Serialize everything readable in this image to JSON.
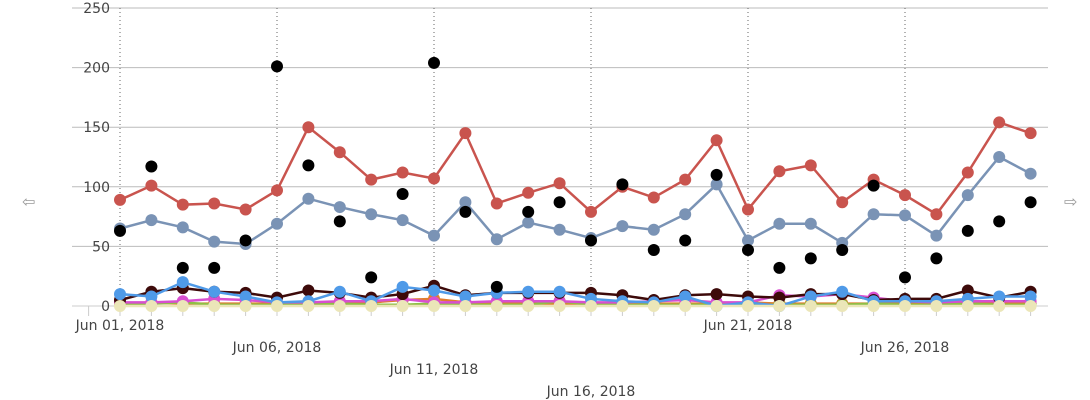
{
  "chart_data": {
    "type": "line",
    "title": "",
    "xlabel": "",
    "ylabel": "",
    "ylim": [
      0,
      250
    ],
    "yticks": [
      "0",
      "50",
      "100",
      "150",
      "200",
      "250"
    ],
    "x": [
      "2018-06-01",
      "2018-06-02",
      "2018-06-03",
      "2018-06-04",
      "2018-06-05",
      "2018-06-06",
      "2018-06-07",
      "2018-06-08",
      "2018-06-09",
      "2018-06-10",
      "2018-06-11",
      "2018-06-12",
      "2018-06-13",
      "2018-06-14",
      "2018-06-15",
      "2018-06-16",
      "2018-06-17",
      "2018-06-18",
      "2018-06-19",
      "2018-06-20",
      "2018-06-21",
      "2018-06-22",
      "2018-06-23",
      "2018-06-24",
      "2018-06-25",
      "2018-06-26",
      "2018-06-27",
      "2018-06-28",
      "2018-06-29",
      "2018-06-30"
    ],
    "xtick_labels": [
      {
        "index": 0,
        "label": "Jun 01, 2018"
      },
      {
        "index": 5,
        "label": "Jun 06, 2018"
      },
      {
        "index": 10,
        "label": "Jun 11, 2018"
      },
      {
        "index": 15,
        "label": "Jun 16, 2018"
      },
      {
        "index": 20,
        "label": "Jun 21, 2018"
      },
      {
        "index": 25,
        "label": "Jun 26, 2018"
      }
    ],
    "grid": "horizontal",
    "series": [
      {
        "color": "#c9544e",
        "line": true,
        "values": [
          89,
          101,
          85,
          86,
          81,
          97,
          150,
          129,
          106,
          112,
          107,
          145,
          86,
          95,
          103,
          79,
          100,
          91,
          106,
          139,
          81,
          113,
          118,
          87,
          106,
          93,
          77,
          112,
          154,
          145
        ]
      },
      {
        "color": "#7a93b5",
        "line": true,
        "values": [
          65,
          72,
          66,
          54,
          52,
          69,
          90,
          83,
          77,
          72,
          59,
          87,
          56,
          70,
          64,
          57,
          67,
          64,
          77,
          102,
          55,
          69,
          69,
          53,
          77,
          76,
          59,
          93,
          125,
          111
        ]
      },
      {
        "color": "#000000",
        "line": false,
        "values": [
          63,
          117,
          32,
          32,
          55,
          201,
          118,
          71,
          24,
          94,
          204,
          79,
          16,
          79,
          87,
          55,
          102,
          47,
          55,
          110,
          47,
          32,
          40,
          47,
          101,
          24,
          40,
          63,
          71,
          87
        ]
      },
      {
        "color": "#e07d2e",
        "line": true,
        "values": [
          2,
          3,
          2,
          2,
          2,
          2,
          2,
          2,
          3,
          5,
          6,
          3,
          3,
          2,
          2,
          2,
          2,
          2,
          2,
          2,
          3,
          2,
          2,
          2,
          2,
          2,
          2,
          2,
          2,
          2
        ]
      },
      {
        "color": "#8fbf45",
        "line": true,
        "values": [
          1,
          2,
          3,
          1,
          1,
          1,
          1,
          2,
          1,
          1,
          2,
          1,
          1,
          1,
          4,
          1,
          1,
          1,
          1,
          1,
          1,
          1,
          1,
          1,
          2,
          1,
          1,
          2,
          1,
          1
        ]
      },
      {
        "color": "#d84fd0",
        "line": true,
        "values": [
          3,
          3,
          4,
          6,
          5,
          3,
          3,
          4,
          4,
          6,
          3,
          3,
          4,
          4,
          4,
          3,
          3,
          4,
          5,
          3,
          3,
          9,
          8,
          10,
          7,
          4,
          3,
          4,
          4,
          4
        ]
      },
      {
        "color": "#3d0a0a",
        "line": true,
        "values": [
          5,
          12,
          15,
          12,
          11,
          7,
          13,
          11,
          7,
          10,
          17,
          9,
          11,
          11,
          11,
          11,
          9,
          5,
          9,
          10,
          8,
          7,
          10,
          10,
          5,
          6,
          6,
          13,
          7,
          12
        ]
      },
      {
        "color": "#4f9ae8",
        "line": true,
        "values": [
          10,
          8,
          20,
          12,
          8,
          3,
          4,
          12,
          4,
          16,
          13,
          8,
          11,
          12,
          12,
          6,
          4,
          3,
          8,
          0,
          3,
          0,
          8,
          12,
          4,
          4,
          4,
          6,
          8,
          8
        ]
      },
      {
        "color": "#ebe6b8",
        "line": true,
        "values": [
          0,
          0,
          0,
          0,
          0,
          0,
          0,
          0,
          0,
          0,
          0,
          0,
          0,
          0,
          0,
          0,
          0,
          0,
          0,
          0,
          0,
          0,
          0,
          0,
          0,
          0,
          0,
          0,
          0,
          0
        ]
      }
    ]
  },
  "nav": {
    "left_icon": "arrow-left-icon",
    "right_icon": "arrow-right-icon",
    "left_glyph": "⇦",
    "right_glyph": "⇨"
  }
}
